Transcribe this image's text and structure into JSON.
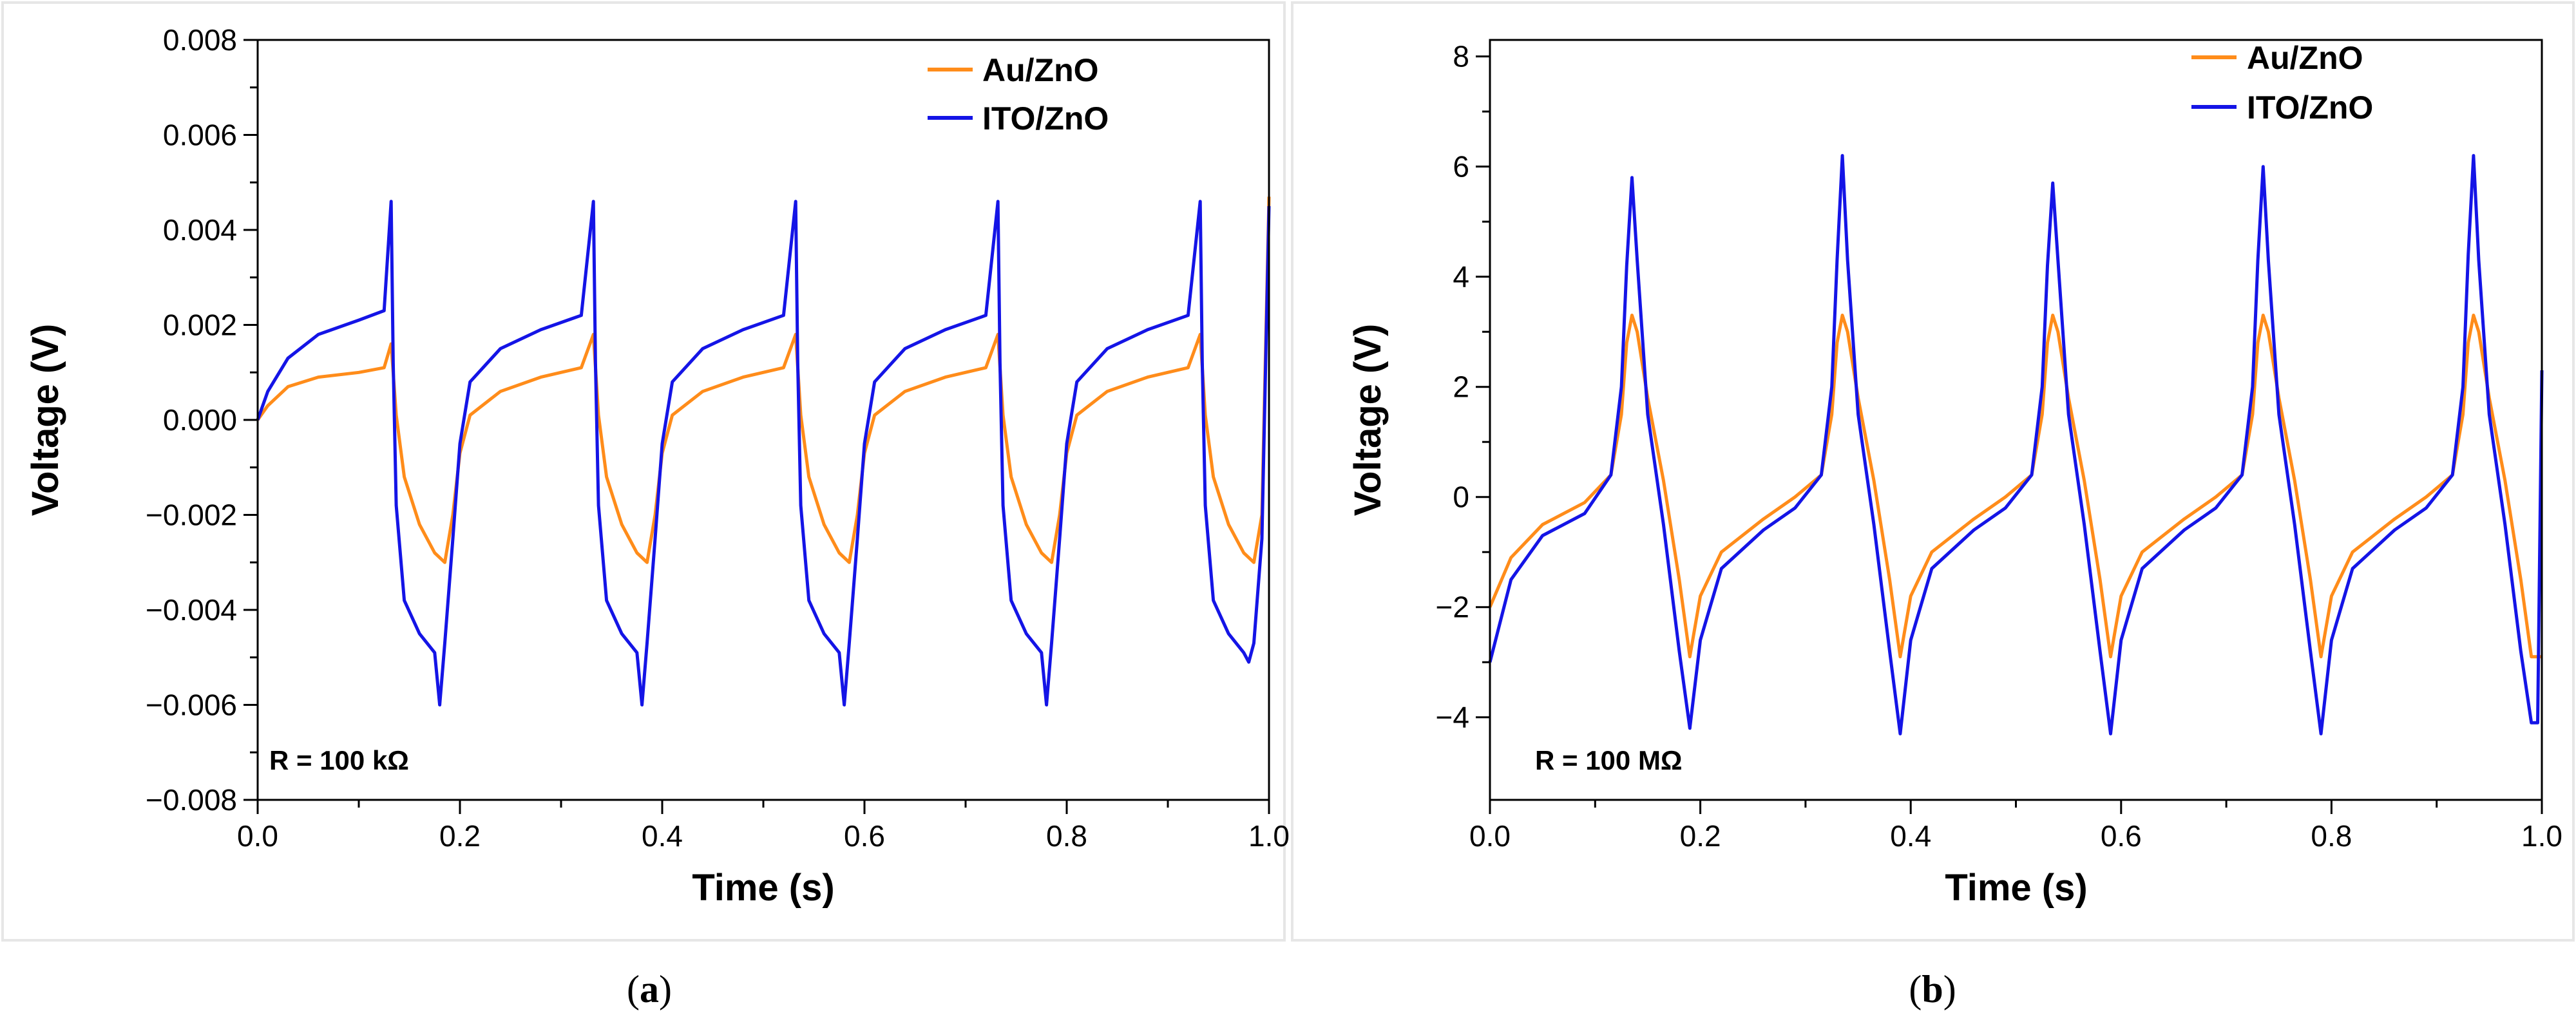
{
  "figure_labels": {
    "a": {
      "open": "(",
      "letter": "a",
      "close": ")"
    },
    "b": {
      "open": "(",
      "letter": "b",
      "close": ")"
    }
  },
  "colors": {
    "au": "#ff8c1a",
    "ito": "#1414e6",
    "axis": "#000000",
    "frame": "#e6e6e6"
  },
  "chart_data": [
    {
      "id": "a",
      "type": "line",
      "xlabel": "Time (s)",
      "ylabel": "Voltage (V)",
      "xlim": [
        0.0,
        1.0
      ],
      "ylim": [
        -0.008,
        0.008
      ],
      "xticks": [
        0.0,
        0.2,
        0.4,
        0.6,
        0.8,
        1.0
      ],
      "xtick_labels": [
        "0.0",
        "0.2",
        "0.4",
        "0.6",
        "0.8",
        "1.0"
      ],
      "yticks": [
        -0.008,
        -0.006,
        -0.004,
        -0.002,
        0.0,
        0.002,
        0.004,
        0.006,
        0.008
      ],
      "ytick_labels": [
        "−0.008",
        "−0.006",
        "−0.004",
        "−0.002",
        "0.000",
        "0.002",
        "0.004",
        "0.006",
        "0.008"
      ],
      "legend_position": "top-right",
      "annotation": "R = 100 kΩ",
      "series": [
        {
          "name": "Au/ZnO",
          "color_key": "au",
          "x": [
            0.0,
            0.01,
            0.03,
            0.06,
            0.1,
            0.125,
            0.132,
            0.137,
            0.145,
            0.16,
            0.175,
            0.185,
            0.193,
            0.2,
            0.21,
            0.24,
            0.28,
            0.32,
            0.332,
            0.337,
            0.345,
            0.36,
            0.375,
            0.385,
            0.393,
            0.4,
            0.41,
            0.44,
            0.48,
            0.52,
            0.532,
            0.537,
            0.545,
            0.56,
            0.575,
            0.585,
            0.593,
            0.6,
            0.61,
            0.64,
            0.68,
            0.72,
            0.732,
            0.737,
            0.745,
            0.76,
            0.775,
            0.785,
            0.793,
            0.8,
            0.81,
            0.84,
            0.88,
            0.92,
            0.932,
            0.937,
            0.945,
            0.96,
            0.975,
            0.985,
            0.993,
            1.0
          ],
          "y": [
            0.0,
            0.0003,
            0.0007,
            0.0009,
            0.001,
            0.0011,
            0.0016,
            0.0001,
            -0.0012,
            -0.0022,
            -0.0028,
            -0.003,
            -0.002,
            -0.0007,
            0.0001,
            0.0006,
            0.0009,
            0.0011,
            0.0018,
            0.0001,
            -0.0012,
            -0.0022,
            -0.0028,
            -0.003,
            -0.002,
            -0.0007,
            0.0001,
            0.0006,
            0.0009,
            0.0011,
            0.0018,
            0.0001,
            -0.0012,
            -0.0022,
            -0.0028,
            -0.003,
            -0.002,
            -0.0007,
            0.0001,
            0.0006,
            0.0009,
            0.0011,
            0.0018,
            0.0001,
            -0.0012,
            -0.0022,
            -0.0028,
            -0.003,
            -0.002,
            -0.0007,
            0.0001,
            0.0006,
            0.0009,
            0.0011,
            0.0018,
            0.0001,
            -0.0012,
            -0.0022,
            -0.0028,
            -0.003,
            -0.002,
            0.0047
          ]
        },
        {
          "name": "ITO/ZnO",
          "color_key": "ito",
          "x": [
            0.0,
            0.01,
            0.03,
            0.06,
            0.1,
            0.125,
            0.132,
            0.134,
            0.137,
            0.145,
            0.16,
            0.175,
            0.18,
            0.185,
            0.193,
            0.2,
            0.21,
            0.24,
            0.28,
            0.32,
            0.332,
            0.334,
            0.337,
            0.345,
            0.36,
            0.375,
            0.38,
            0.385,
            0.393,
            0.4,
            0.41,
            0.44,
            0.48,
            0.52,
            0.532,
            0.534,
            0.537,
            0.545,
            0.56,
            0.575,
            0.58,
            0.585,
            0.593,
            0.6,
            0.61,
            0.64,
            0.68,
            0.72,
            0.732,
            0.734,
            0.737,
            0.745,
            0.76,
            0.775,
            0.78,
            0.785,
            0.793,
            0.8,
            0.81,
            0.84,
            0.88,
            0.92,
            0.932,
            0.934,
            0.937,
            0.945,
            0.96,
            0.975,
            0.98,
            0.985,
            0.993,
            1.0
          ],
          "y": [
            0.0,
            0.0006,
            0.0013,
            0.0018,
            0.0021,
            0.0023,
            0.0046,
            0.0012,
            -0.0018,
            -0.0038,
            -0.0045,
            -0.0049,
            -0.006,
            -0.0047,
            -0.0025,
            -0.0005,
            0.0008,
            0.0015,
            0.0019,
            0.0022,
            0.0046,
            0.0012,
            -0.0018,
            -0.0038,
            -0.0045,
            -0.0049,
            -0.006,
            -0.0047,
            -0.0025,
            -0.0005,
            0.0008,
            0.0015,
            0.0019,
            0.0022,
            0.0046,
            0.0012,
            -0.0018,
            -0.0038,
            -0.0045,
            -0.0049,
            -0.006,
            -0.0047,
            -0.0025,
            -0.0005,
            0.0008,
            0.0015,
            0.0019,
            0.0022,
            0.0046,
            0.0012,
            -0.0018,
            -0.0038,
            -0.0045,
            -0.0049,
            -0.006,
            -0.0047,
            -0.0025,
            -0.0005,
            0.0008,
            0.0015,
            0.0019,
            0.0022,
            0.0046,
            0.0012,
            -0.0018,
            -0.0038,
            -0.0045,
            -0.0049,
            -0.0051,
            -0.0047,
            -0.0025,
            0.0045
          ]
        }
      ]
    },
    {
      "id": "b",
      "type": "line",
      "xlabel": "Time (s)",
      "ylabel": "Voltage (V)",
      "xlim": [
        0.0,
        1.0
      ],
      "ylim": [
        -5.5,
        8.3
      ],
      "xticks": [
        0.0,
        0.2,
        0.4,
        0.6,
        0.8,
        1.0
      ],
      "xtick_labels": [
        "0.0",
        "0.2",
        "0.4",
        "0.6",
        "0.8",
        "1.0"
      ],
      "yticks": [
        -4,
        -2,
        0,
        2,
        4,
        6,
        8
      ],
      "ytick_labels": [
        "−4",
        "−2",
        "0",
        "2",
        "4",
        "6",
        "8"
      ],
      "legend_position": "top-right",
      "annotation": "R = 100 MΩ",
      "series": [
        {
          "name": "Au/ZnO",
          "color_key": "au",
          "x": [
            0.0,
            0.02,
            0.05,
            0.09,
            0.115,
            0.125,
            0.13,
            0.135,
            0.14,
            0.15,
            0.165,
            0.18,
            0.19,
            0.2,
            0.22,
            0.26,
            0.29,
            0.315,
            0.325,
            0.33,
            0.335,
            0.34,
            0.35,
            0.365,
            0.38,
            0.39,
            0.4,
            0.42,
            0.46,
            0.49,
            0.515,
            0.525,
            0.53,
            0.535,
            0.54,
            0.55,
            0.565,
            0.58,
            0.59,
            0.6,
            0.62,
            0.66,
            0.69,
            0.715,
            0.725,
            0.73,
            0.735,
            0.74,
            0.75,
            0.765,
            0.78,
            0.79,
            0.8,
            0.82,
            0.86,
            0.89,
            0.915,
            0.925,
            0.93,
            0.935,
            0.94,
            0.95,
            0.965,
            0.98,
            0.99,
            1.0
          ],
          "y": [
            -2.0,
            -1.1,
            -0.5,
            -0.1,
            0.4,
            1.5,
            2.8,
            3.3,
            3.0,
            1.8,
            0.3,
            -1.5,
            -2.9,
            -1.8,
            -1.0,
            -0.4,
            0.0,
            0.4,
            1.5,
            2.8,
            3.3,
            3.0,
            1.8,
            0.3,
            -1.5,
            -2.9,
            -1.8,
            -1.0,
            -0.4,
            0.0,
            0.4,
            1.5,
            2.8,
            3.3,
            3.0,
            1.8,
            0.3,
            -1.5,
            -2.9,
            -1.8,
            -1.0,
            -0.4,
            0.0,
            0.4,
            1.5,
            2.8,
            3.3,
            3.0,
            1.8,
            0.3,
            -1.5,
            -2.9,
            -1.8,
            -1.0,
            -0.4,
            0.0,
            0.4,
            1.5,
            2.8,
            3.3,
            3.0,
            1.8,
            0.3,
            -1.5,
            -2.9,
            -2.9
          ]
        },
        {
          "name": "ITO/ZnO",
          "color_key": "ito",
          "x": [
            0.0,
            0.02,
            0.05,
            0.09,
            0.115,
            0.125,
            0.13,
            0.135,
            0.14,
            0.15,
            0.165,
            0.18,
            0.19,
            0.2,
            0.22,
            0.26,
            0.29,
            0.315,
            0.325,
            0.33,
            0.335,
            0.34,
            0.35,
            0.365,
            0.38,
            0.39,
            0.4,
            0.42,
            0.46,
            0.49,
            0.515,
            0.525,
            0.53,
            0.535,
            0.54,
            0.55,
            0.565,
            0.58,
            0.59,
            0.6,
            0.62,
            0.66,
            0.69,
            0.715,
            0.725,
            0.73,
            0.735,
            0.74,
            0.75,
            0.765,
            0.78,
            0.79,
            0.8,
            0.82,
            0.86,
            0.89,
            0.915,
            0.925,
            0.93,
            0.935,
            0.94,
            0.95,
            0.965,
            0.98,
            0.99,
            0.996,
            1.0
          ],
          "y": [
            -3.0,
            -1.5,
            -0.7,
            -0.3,
            0.4,
            2.0,
            4.2,
            5.8,
            4.3,
            1.5,
            -0.5,
            -2.8,
            -4.2,
            -2.6,
            -1.3,
            -0.6,
            -0.2,
            0.4,
            2.0,
            4.3,
            6.2,
            4.3,
            1.5,
            -0.5,
            -2.8,
            -4.3,
            -2.6,
            -1.3,
            -0.6,
            -0.2,
            0.4,
            2.0,
            4.2,
            5.7,
            4.3,
            1.5,
            -0.5,
            -2.8,
            -4.3,
            -2.6,
            -1.3,
            -0.6,
            -0.2,
            0.4,
            2.0,
            4.3,
            6.0,
            4.3,
            1.5,
            -0.5,
            -2.8,
            -4.3,
            -2.6,
            -1.3,
            -0.6,
            -0.2,
            0.4,
            2.0,
            4.4,
            6.2,
            4.3,
            1.5,
            -0.5,
            -2.8,
            -4.1,
            -4.1,
            2.3
          ]
        }
      ]
    }
  ]
}
